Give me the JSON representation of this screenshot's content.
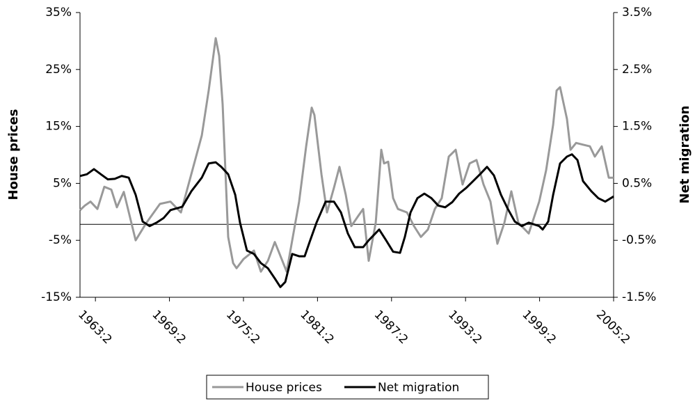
{
  "chart_data": {
    "type": "line",
    "ylabel": "House prices",
    "y2label": "Net migration",
    "xlim": [
      1962,
      2005.25
    ],
    "xticks": [
      {
        "value": 1963.25,
        "label": "1963:2"
      },
      {
        "value": 1969.25,
        "label": "1969:2"
      },
      {
        "value": 1975.25,
        "label": "1975:2"
      },
      {
        "value": 1981.25,
        "label": "1981:2"
      },
      {
        "value": 1987.25,
        "label": "1987:2"
      },
      {
        "value": 1993.25,
        "label": "1993:2"
      },
      {
        "value": 1999.25,
        "label": "1999:2"
      },
      {
        "value": 2005.25,
        "label": "2005:2"
      }
    ],
    "ylim": [
      -15,
      35
    ],
    "yticks": [
      {
        "value": -15,
        "label": "-15%"
      },
      {
        "value": -5,
        "label": "-5%"
      },
      {
        "value": 5,
        "label": "5%"
      },
      {
        "value": 15,
        "label": "15%"
      },
      {
        "value": 25,
        "label": "25%"
      },
      {
        "value": 35,
        "label": "35%"
      }
    ],
    "y2lim": [
      -1.5,
      3.5
    ],
    "y2ticks": [
      {
        "value": -1.5,
        "label": "-1.5%"
      },
      {
        "value": -0.5,
        "label": "-0.5%"
      },
      {
        "value": 0.5,
        "label": "0.5%"
      },
      {
        "value": 1.5,
        "label": "1.5%"
      },
      {
        "value": 2.5,
        "label": "2.5%"
      },
      {
        "value": 3.5,
        "label": "3.5%"
      }
    ],
    "hline": -2.2,
    "legend": "bottom",
    "series": [
      {
        "name": "House prices",
        "color": "#999999",
        "x": [
          1962,
          1962.39,
          1962.85,
          1963.41,
          1963.97,
          1964.54,
          1964.99,
          1965.55,
          1966.51,
          1967.36,
          1968.48,
          1969.33,
          1970.18,
          1971.02,
          1971.87,
          1972.43,
          1973.0,
          1973.28,
          1973.56,
          1974.01,
          1974.41,
          1974.69,
          1975.25,
          1976.1,
          1976.66,
          1977.23,
          1977.79,
          1978.07,
          1978.75,
          1979.2,
          1979.76,
          1980.33,
          1980.78,
          1981.0,
          1981.57,
          1982.02,
          1982.58,
          1983.03,
          1983.54,
          1983.99,
          1984.56,
          1984.95,
          1985.4,
          1985.97,
          1986.42,
          1986.64,
          1986.98,
          1987.38,
          1987.77,
          1988.5,
          1989.07,
          1989.63,
          1990.2,
          1990.76,
          1991.32,
          1991.89,
          1992.45,
          1993.01,
          1993.58,
          1994.14,
          1994.71,
          1995.27,
          1995.83,
          1996.4,
          1996.96,
          1997.53,
          1998.37,
          1999.22,
          1999.78,
          2000.35,
          2000.63,
          2000.91,
          2001.47,
          2001.76,
          2002.21,
          2002.77,
          2003.33,
          2003.73,
          2004.29,
          2004.86,
          2005.25
        ],
        "values": [
          0.3,
          1.1,
          1.8,
          0.5,
          4.4,
          3.9,
          0.8,
          3.5,
          -5,
          -2,
          1.4,
          1.8,
          -0.1,
          6.6,
          13.4,
          21.3,
          30.5,
          27.4,
          18.9,
          -4.4,
          -9,
          -9.9,
          -8.3,
          -6.8,
          -10.5,
          -8.6,
          -5.3,
          -6.8,
          -10.5,
          -5,
          1.8,
          11.5,
          18.3,
          17,
          6.6,
          -0.1,
          4.2,
          7.9,
          3,
          -2.5,
          -0.7,
          0.5,
          -8.6,
          -1.9,
          10.9,
          8.5,
          8.8,
          2.4,
          0.5,
          -0.1,
          -2.5,
          -4.4,
          -3.1,
          0.5,
          2.4,
          9.7,
          10.9,
          4.8,
          8.5,
          9.1,
          4.8,
          1.8,
          -5.6,
          -1.9,
          3.6,
          -1.9,
          -3.8,
          1.8,
          7.3,
          15.3,
          21.3,
          21.9,
          16.3,
          10.9,
          12.1,
          11.8,
          11.5,
          9.7,
          11.5,
          6,
          6
        ]
      },
      {
        "name": "Net migration",
        "color": "#000000",
        "axis": "y2",
        "x": [
          1962,
          1962.56,
          1963.13,
          1963.69,
          1964.26,
          1964.82,
          1965.38,
          1965.95,
          1966.51,
          1967.08,
          1967.64,
          1968.2,
          1968.77,
          1969.33,
          1970.29,
          1971.02,
          1971.87,
          1972.43,
          1973.0,
          1973.45,
          1974.01,
          1974.58,
          1974.97,
          1975.53,
          1976.1,
          1976.66,
          1977.23,
          1977.79,
          1978.24,
          1978.64,
          1979.2,
          1979.76,
          1980.21,
          1980.61,
          1981.17,
          1981.91,
          1982.58,
          1983.15,
          1983.71,
          1984.27,
          1984.95,
          1985.4,
          1986.25,
          1986.81,
          1987.38,
          1987.94,
          1988.33,
          1988.79,
          1989.35,
          1989.91,
          1990.48,
          1991.04,
          1991.6,
          1992.17,
          1992.73,
          1993.3,
          1993.86,
          1994.42,
          1994.99,
          1995.55,
          1996.12,
          1996.68,
          1997.24,
          1997.81,
          1998.37,
          1999.22,
          1999.5,
          1999.95,
          2000.35,
          2000.91,
          2001.47,
          2001.87,
          2002.32,
          2002.77,
          2003.45,
          2004.01,
          2004.57,
          2005.25
        ],
        "values": [
          0.63,
          0.66,
          0.75,
          0.66,
          0.57,
          0.58,
          0.63,
          0.6,
          0.3,
          -0.17,
          -0.25,
          -0.19,
          -0.11,
          0.03,
          0.09,
          0.36,
          0.6,
          0.85,
          0.87,
          0.79,
          0.66,
          0.3,
          -0.19,
          -0.68,
          -0.74,
          -0.9,
          -0.99,
          -1.17,
          -1.32,
          -1.23,
          -0.74,
          -0.78,
          -0.78,
          -0.53,
          -0.19,
          0.18,
          0.18,
          -0.01,
          -0.38,
          -0.62,
          -0.62,
          -0.5,
          -0.31,
          -0.5,
          -0.7,
          -0.72,
          -0.44,
          -0.01,
          0.24,
          0.32,
          0.24,
          0.11,
          0.08,
          0.17,
          0.32,
          0.42,
          0.54,
          0.66,
          0.79,
          0.64,
          0.3,
          0.05,
          -0.17,
          -0.25,
          -0.19,
          -0.25,
          -0.31,
          -0.17,
          0.3,
          0.85,
          0.97,
          1.01,
          0.91,
          0.54,
          0.36,
          0.24,
          0.18,
          0.27
        ]
      }
    ]
  }
}
